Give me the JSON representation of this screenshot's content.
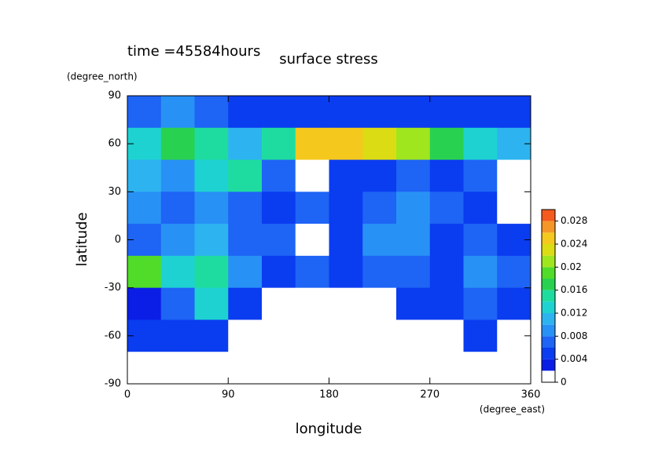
{
  "chart_data": {
    "type": "contour",
    "title": "surface stress",
    "subtitle": "time =45584hours",
    "x_label": "longitude",
    "x_unit": "(degree_east)",
    "y_label": "latitude",
    "y_unit": "(degree_north)",
    "xlim": [
      0,
      360
    ],
    "xticks": [
      0,
      90,
      180,
      270,
      360
    ],
    "ylim": [
      -90,
      90
    ],
    "yticks": [
      -90,
      -60,
      -30,
      0,
      30,
      60,
      90
    ],
    "x": [
      15,
      45,
      75,
      105,
      135,
      165,
      195,
      225,
      255,
      285,
      315,
      345
    ],
    "y": [
      80,
      60,
      40,
      20,
      0,
      -20,
      -40,
      -60,
      -80
    ],
    "z": [
      [
        0.006,
        0.008,
        0.006,
        0.005,
        0.004,
        0.005,
        0.004,
        0.005,
        0.004,
        0.004,
        0.004,
        0.005
      ],
      [
        0.012,
        0.016,
        0.014,
        0.01,
        0.014,
        0.024,
        0.024,
        0.022,
        0.02,
        0.016,
        0.012,
        0.01
      ],
      [
        0.01,
        0.008,
        0.012,
        0.014,
        0.006,
        0.001,
        0.004,
        0.004,
        0.006,
        0.004,
        0.006,
        0.001
      ],
      [
        0.008,
        0.006,
        0.008,
        0.006,
        0.004,
        0.006,
        0.004,
        0.006,
        0.008,
        0.006,
        0.004,
        0.001
      ],
      [
        0.006,
        0.008,
        0.01,
        0.006,
        0.006,
        0.001,
        0.004,
        0.008,
        0.008,
        0.004,
        0.006,
        0.004
      ],
      [
        0.018,
        0.012,
        0.014,
        0.008,
        0.004,
        0.006,
        0.004,
        0.006,
        0.006,
        0.004,
        0.008,
        0.006
      ],
      [
        0.002,
        0.006,
        0.012,
        0.004,
        0.001,
        0.001,
        0.001,
        0.001,
        0.004,
        0.004,
        0.006,
        0.004
      ],
      [
        0.004,
        0.004,
        0.004,
        0.001,
        0.001,
        0.001,
        0.001,
        0.001,
        0.001,
        0.001,
        0.004,
        0.001
      ],
      [
        0.001,
        0.001,
        0.001,
        0.001,
        0.001,
        0.001,
        0.001,
        0.001,
        0.001,
        0.001,
        0.001,
        0.001
      ]
    ],
    "levels": [
      0,
      0.002,
      0.004,
      0.006,
      0.008,
      0.01,
      0.012,
      0.014,
      0.016,
      0.018,
      0.02,
      0.022,
      0.024,
      0.026,
      0.028,
      0.03
    ],
    "colors": [
      "#ffffff",
      "#0a1ee6",
      "#0a3cf0",
      "#1e64f5",
      "#2891f5",
      "#2db4f0",
      "#1ed2d2",
      "#1edca0",
      "#28d250",
      "#50dc28",
      "#a0e61e",
      "#dcdc14",
      "#f5c81e",
      "#f59628",
      "#f55a1e"
    ],
    "colorbar_lim": [
      0,
      0.03
    ],
    "colorbar_ticks": [
      0,
      0.004,
      0.008,
      0.012,
      0.016,
      0.02,
      0.024,
      0.028
    ]
  }
}
